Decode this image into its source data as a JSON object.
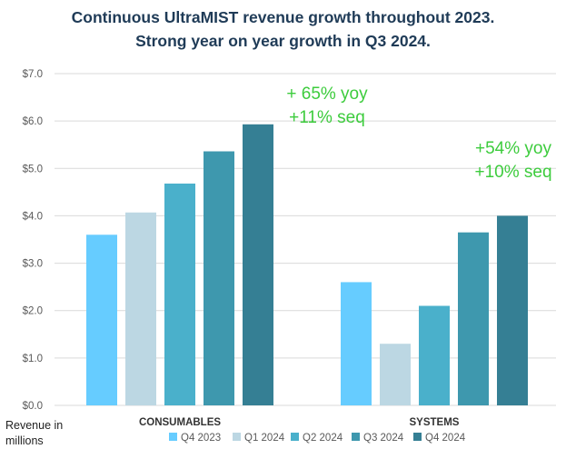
{
  "title_line1": "Continuous UltraMIST revenue growth throughout 2023.",
  "title_line2": "Strong year on year growth in Q3 2024.",
  "annotations": {
    "consumables_yoy": "+ 65% yoy",
    "consumables_seq": "+11% seq",
    "systems_yoy": "+54% yoy",
    "systems_seq": "+10% seq"
  },
  "ylabel_line1": "Revenue in",
  "ylabel_line2": "millions",
  "chart_data": {
    "type": "bar",
    "title": "Continuous UltraMIST revenue growth throughout 2023. Strong year on year growth in Q3 2024.",
    "categories": [
      "CONSUMABLES",
      "SYSTEMS"
    ],
    "series": [
      {
        "name": "Q4 2023",
        "values": [
          3.6,
          2.6
        ],
        "color": "#66ccff"
      },
      {
        "name": "Q1 2024",
        "values": [
          4.07,
          1.3
        ],
        "color": "#bcd7e3"
      },
      {
        "name": "Q2 2024",
        "values": [
          4.68,
          2.1
        ],
        "color": "#4ab0cb"
      },
      {
        "name": "Q3 2024",
        "values": [
          5.36,
          3.65
        ],
        "color": "#3e98ae"
      },
      {
        "name": "Q4 2024",
        "values": [
          5.93,
          4.0
        ],
        "color": "#357f94"
      }
    ],
    "yticks": [
      "$0.0",
      "$1.0",
      "$2.0",
      "$3.0",
      "$4.0",
      "$5.0",
      "$6.0",
      "$7.0"
    ],
    "ylim": [
      0,
      7
    ],
    "ylabel": "Revenue in millions",
    "xlabel": "",
    "grid": true,
    "legend_position": "bottom"
  }
}
